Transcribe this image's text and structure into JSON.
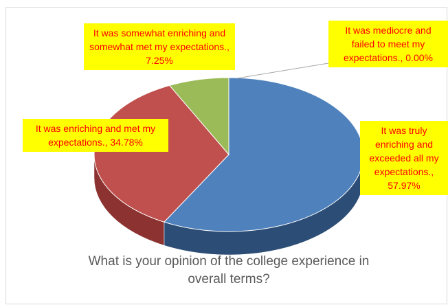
{
  "chart_data": {
    "type": "pie3d",
    "title": "What is your opinion of the college experience in overall terms?",
    "values": [
      57.97,
      34.78,
      7.25,
      0.0
    ],
    "value_labels": [
      "It was truly enriching and exceeded all my expectations., 57.97%",
      "It was enriching and met my expectations., 34.78%",
      "It was somewhat enriching and somewhat met my expectations., 7.25%",
      "It was mediocre and failed to meet my expectations., 0.00%"
    ],
    "colors": [
      "#4f81bd",
      "#c0504d",
      "#9bbb59",
      "#8064a2"
    ],
    "side_colors": [
      "#2c4d75",
      "#8c3331",
      "#71893f",
      "#5c4776"
    ]
  }
}
